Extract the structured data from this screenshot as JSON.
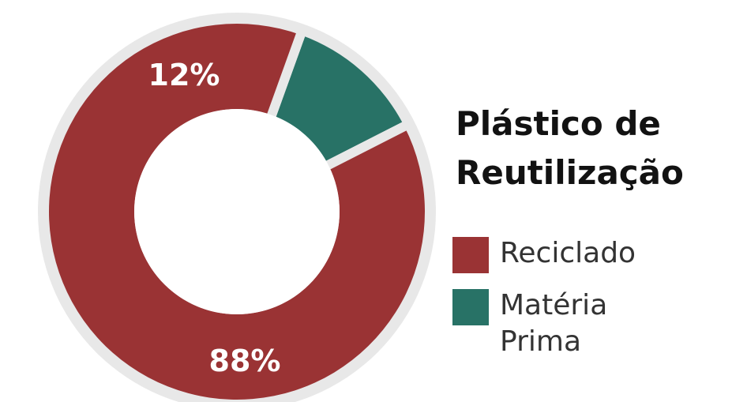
{
  "chart_data": {
    "type": "pie",
    "title": "Plástico de Reutilização",
    "slices": [
      {
        "label": "Reciclado",
        "value": 88,
        "display": "88%",
        "color": "#9a3334"
      },
      {
        "label": "Matéria Prima",
        "value": 12,
        "display": "12%",
        "color": "#287266"
      }
    ],
    "legend_position": "right",
    "ring_color": "#e8e8e8"
  }
}
